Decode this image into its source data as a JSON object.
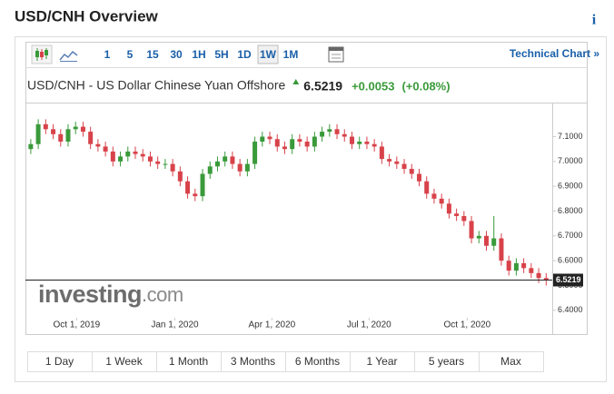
{
  "header": {
    "title": "USD/CNH Overview",
    "info": "i"
  },
  "toolbar": {
    "intervals": [
      "1",
      "5",
      "15",
      "30",
      "1H",
      "5H",
      "1D",
      "1W",
      "1M"
    ],
    "active": "1W",
    "technical_chart": "Technical Chart »"
  },
  "instrument": {
    "name": "USD/CNH - US Dollar Chinese Yuan Offshore",
    "change": "+0.0053",
    "change_pct": "(+0.08%)"
  },
  "chart_data": {
    "type": "candlestick",
    "x": [
      "2019-08-19",
      "2019-08-26",
      "2019-09-02",
      "2019-09-09",
      "2019-09-16",
      "2019-09-23",
      "2019-09-30",
      "2019-10-07",
      "2019-10-14",
      "2019-10-21",
      "2019-10-28",
      "2019-11-04",
      "2019-11-11",
      "2019-11-18",
      "2019-11-25",
      "2019-12-02",
      "2019-12-09",
      "2019-12-16",
      "2019-12-23",
      "2019-12-30",
      "2020-01-06",
      "2020-01-13",
      "2020-01-20",
      "2020-01-27",
      "2020-02-03",
      "2020-02-10",
      "2020-02-17",
      "2020-02-24",
      "2020-03-02",
      "2020-03-09",
      "2020-03-16",
      "2020-03-23",
      "2020-03-30",
      "2020-04-06",
      "2020-04-13",
      "2020-04-20",
      "2020-04-27",
      "2020-05-04",
      "2020-05-11",
      "2020-05-18",
      "2020-05-25",
      "2020-06-01",
      "2020-06-08",
      "2020-06-15",
      "2020-06-22",
      "2020-06-29",
      "2020-07-06",
      "2020-07-13",
      "2020-07-20",
      "2020-07-27",
      "2020-08-03",
      "2020-08-10",
      "2020-08-17",
      "2020-08-24",
      "2020-08-31",
      "2020-09-07",
      "2020-09-14",
      "2020-09-21",
      "2020-09-28",
      "2020-10-05",
      "2020-10-12",
      "2020-10-19",
      "2020-10-26",
      "2020-11-02",
      "2020-11-09",
      "2020-11-16",
      "2020-11-23",
      "2020-11-30",
      "2020-12-07",
      "2020-12-14"
    ],
    "open": [
      7.05,
      7.07,
      7.15,
      7.13,
      7.11,
      7.08,
      7.13,
      7.14,
      7.12,
      7.07,
      7.06,
      7.04,
      7.0,
      7.02,
      7.04,
      7.03,
      7.02,
      7.0,
      6.99,
      6.99,
      6.96,
      6.92,
      6.87,
      6.86,
      6.95,
      6.98,
      7.0,
      7.02,
      6.99,
      6.96,
      6.99,
      7.08,
      7.1,
      7.09,
      7.06,
      7.05,
      7.09,
      7.08,
      7.06,
      7.1,
      7.12,
      7.13,
      7.11,
      7.1,
      7.07,
      7.08,
      7.07,
      7.06,
      7.01,
      7.0,
      6.99,
      6.97,
      6.95,
      6.92,
      6.87,
      6.85,
      6.83,
      6.79,
      6.78,
      6.76,
      6.69,
      6.7,
      6.66,
      6.69,
      6.6,
      6.56,
      6.59,
      6.57,
      6.55,
      6.53
    ],
    "high": [
      7.09,
      7.17,
      7.17,
      7.15,
      7.13,
      7.15,
      7.16,
      7.16,
      7.14,
      7.09,
      7.08,
      7.06,
      7.04,
      7.06,
      7.06,
      7.05,
      7.04,
      7.02,
      7.01,
      7.01,
      6.98,
      6.94,
      6.89,
      6.97,
      7.0,
      7.02,
      7.04,
      7.04,
      7.01,
      7.01,
      7.1,
      7.12,
      7.12,
      7.11,
      7.08,
      7.11,
      7.11,
      7.1,
      7.12,
      7.14,
      7.15,
      7.15,
      7.13,
      7.12,
      7.1,
      7.1,
      7.09,
      7.08,
      7.03,
      7.02,
      7.01,
      6.99,
      6.97,
      6.94,
      6.89,
      6.87,
      6.85,
      6.81,
      6.8,
      6.78,
      6.72,
      6.72,
      6.78,
      6.71,
      6.62,
      6.61,
      6.61,
      6.59,
      6.57,
      6.55
    ],
    "low": [
      7.03,
      7.05,
      7.11,
      7.09,
      7.06,
      7.06,
      7.11,
      7.1,
      7.05,
      7.04,
      7.02,
      6.98,
      6.98,
      7.0,
      7.01,
      7.0,
      6.98,
      6.97,
      6.97,
      6.94,
      6.9,
      6.85,
      6.84,
      6.84,
      6.93,
      6.96,
      6.98,
      6.97,
      6.94,
      6.94,
      6.97,
      7.06,
      7.07,
      7.04,
      7.03,
      7.03,
      7.06,
      7.04,
      7.04,
      7.08,
      7.1,
      7.09,
      7.08,
      7.05,
      7.05,
      7.05,
      7.04,
      6.99,
      6.98,
      6.97,
      6.95,
      6.93,
      6.9,
      6.85,
      6.83,
      6.81,
      6.77,
      6.76,
      6.74,
      6.67,
      6.67,
      6.64,
      6.64,
      6.58,
      6.54,
      6.54,
      6.55,
      6.53,
      6.51,
      6.5
    ],
    "close": [
      7.07,
      7.15,
      7.13,
      7.11,
      7.08,
      7.13,
      7.14,
      7.12,
      7.07,
      7.06,
      7.04,
      7.0,
      7.02,
      7.04,
      7.03,
      7.02,
      7.0,
      6.99,
      6.99,
      6.96,
      6.92,
      6.87,
      6.86,
      6.95,
      6.98,
      7.0,
      7.02,
      6.99,
      6.96,
      6.99,
      7.08,
      7.1,
      7.09,
      7.06,
      7.05,
      7.09,
      7.08,
      7.06,
      7.1,
      7.12,
      7.13,
      7.11,
      7.1,
      7.07,
      7.08,
      7.07,
      7.06,
      7.01,
      7.0,
      6.99,
      6.97,
      6.95,
      6.92,
      6.87,
      6.85,
      6.83,
      6.79,
      6.78,
      6.76,
      6.69,
      6.7,
      6.66,
      6.69,
      6.6,
      6.56,
      6.59,
      6.57,
      6.55,
      6.53,
      6.5219
    ],
    "up_color": "#3a9a3a",
    "down_color": "#d8424a",
    "xlim": [
      "2019-08-14",
      "2020-12-18"
    ],
    "xticks": [
      {
        "value": "2019-10-01",
        "label": "Oct 1, 2019"
      },
      {
        "value": "2020-01-01",
        "label": "Jan 1, 2020"
      },
      {
        "value": "2020-04-01",
        "label": "Apr 1, 2020"
      },
      {
        "value": "2020-07-01",
        "label": "Jul 1, 2020"
      },
      {
        "value": "2020-10-01",
        "label": "Oct 1, 2020"
      }
    ],
    "ylim": [
      6.37,
      7.23
    ],
    "yticks": [
      {
        "value": 7.1,
        "label": "7.1000"
      },
      {
        "value": 7.0,
        "label": "7.0000"
      },
      {
        "value": 6.9,
        "label": "6.9000"
      },
      {
        "value": 6.8,
        "label": "6.8000"
      },
      {
        "value": 6.7,
        "label": "6.7000"
      },
      {
        "value": 6.6,
        "label": "6.6000"
      },
      {
        "value": 6.5,
        "label": "6.5000"
      },
      {
        "value": 6.4,
        "label": "6.4000"
      }
    ],
    "last_value": 6.5219,
    "watermark": [
      "investing",
      ".com"
    ]
  },
  "ranges": [
    "1 Day",
    "1 Week",
    "1 Month",
    "3 Months",
    "6 Months",
    "1 Year",
    "5 years",
    "Max"
  ]
}
